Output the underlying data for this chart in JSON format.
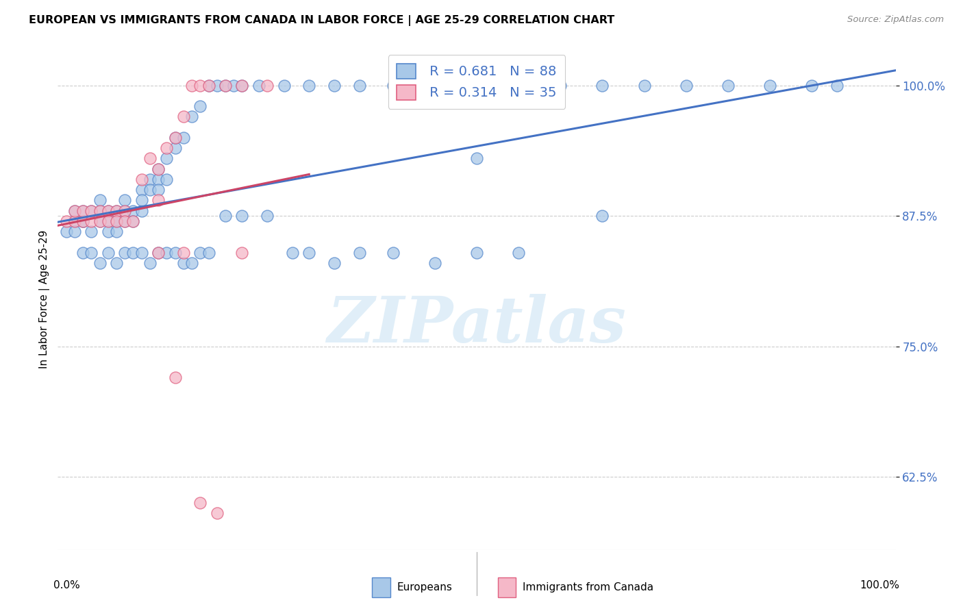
{
  "title": "EUROPEAN VS IMMIGRANTS FROM CANADA IN LABOR FORCE | AGE 25-29 CORRELATION CHART",
  "source": "Source: ZipAtlas.com",
  "ylabel": "In Labor Force | Age 25-29",
  "yticks": [
    0.625,
    0.75,
    0.875,
    1.0
  ],
  "ytick_labels": [
    "62.5%",
    "75.0%",
    "87.5%",
    "100.0%"
  ],
  "xlim": [
    0.0,
    1.0
  ],
  "ylim": [
    0.555,
    1.035
  ],
  "blue_R": 0.681,
  "blue_N": 88,
  "pink_R": 0.314,
  "pink_N": 35,
  "blue_color": "#a8c8e8",
  "pink_color": "#f5b8c8",
  "blue_edge_color": "#5588cc",
  "pink_edge_color": "#e06080",
  "blue_line_color": "#4472c4",
  "pink_line_color": "#cc4466",
  "legend_blue_label": "Europeans",
  "legend_pink_label": "Immigrants from Canada",
  "watermark": "ZIPatlas",
  "blue_x": [
    0.01,
    0.02,
    0.02,
    0.02,
    0.03,
    0.03,
    0.03,
    0.04,
    0.04,
    0.05,
    0.05,
    0.05,
    0.06,
    0.06,
    0.06,
    0.07,
    0.07,
    0.07,
    0.07,
    0.08,
    0.08,
    0.08,
    0.09,
    0.09,
    0.1,
    0.1,
    0.1,
    0.11,
    0.11,
    0.12,
    0.12,
    0.12,
    0.13,
    0.13,
    0.14,
    0.14,
    0.15,
    0.16,
    0.17,
    0.18,
    0.19,
    0.2,
    0.21,
    0.22,
    0.24,
    0.27,
    0.3,
    0.33,
    0.36,
    0.4,
    0.5,
    0.55,
    0.6,
    0.65,
    0.7,
    0.75,
    0.8,
    0.85,
    0.9,
    0.93,
    0.03,
    0.04,
    0.05,
    0.06,
    0.07,
    0.08,
    0.09,
    0.1,
    0.11,
    0.12,
    0.13,
    0.14,
    0.15,
    0.16,
    0.17,
    0.18,
    0.2,
    0.22,
    0.25,
    0.28,
    0.3,
    0.33,
    0.36,
    0.4,
    0.45,
    0.5,
    0.55,
    0.65
  ],
  "blue_y": [
    0.86,
    0.87,
    0.88,
    0.86,
    0.87,
    0.88,
    0.87,
    0.88,
    0.86,
    0.88,
    0.87,
    0.89,
    0.87,
    0.88,
    0.86,
    0.87,
    0.88,
    0.87,
    0.86,
    0.88,
    0.87,
    0.89,
    0.88,
    0.87,
    0.9,
    0.88,
    0.89,
    0.91,
    0.9,
    0.92,
    0.91,
    0.9,
    0.93,
    0.91,
    0.94,
    0.95,
    0.95,
    0.97,
    0.98,
    1.0,
    1.0,
    1.0,
    1.0,
    1.0,
    1.0,
    1.0,
    1.0,
    1.0,
    1.0,
    1.0,
    0.93,
    1.0,
    1.0,
    1.0,
    1.0,
    1.0,
    1.0,
    1.0,
    1.0,
    1.0,
    0.84,
    0.84,
    0.83,
    0.84,
    0.83,
    0.84,
    0.84,
    0.84,
    0.83,
    0.84,
    0.84,
    0.84,
    0.83,
    0.83,
    0.84,
    0.84,
    0.875,
    0.875,
    0.875,
    0.84,
    0.84,
    0.83,
    0.84,
    0.84,
    0.83,
    0.84,
    0.84,
    0.875
  ],
  "pink_x": [
    0.01,
    0.02,
    0.02,
    0.03,
    0.03,
    0.04,
    0.04,
    0.05,
    0.05,
    0.06,
    0.06,
    0.07,
    0.07,
    0.08,
    0.08,
    0.09,
    0.1,
    0.11,
    0.12,
    0.12,
    0.13,
    0.14,
    0.15,
    0.16,
    0.17,
    0.18,
    0.2,
    0.22,
    0.25,
    0.14,
    0.17,
    0.19,
    0.22,
    0.12,
    0.15
  ],
  "pink_y": [
    0.87,
    0.87,
    0.88,
    0.87,
    0.88,
    0.87,
    0.88,
    0.88,
    0.87,
    0.88,
    0.87,
    0.88,
    0.87,
    0.88,
    0.87,
    0.87,
    0.91,
    0.93,
    0.92,
    0.89,
    0.94,
    0.95,
    0.97,
    1.0,
    1.0,
    1.0,
    1.0,
    1.0,
    1.0,
    0.72,
    0.6,
    0.59,
    0.84,
    0.84,
    0.84
  ]
}
